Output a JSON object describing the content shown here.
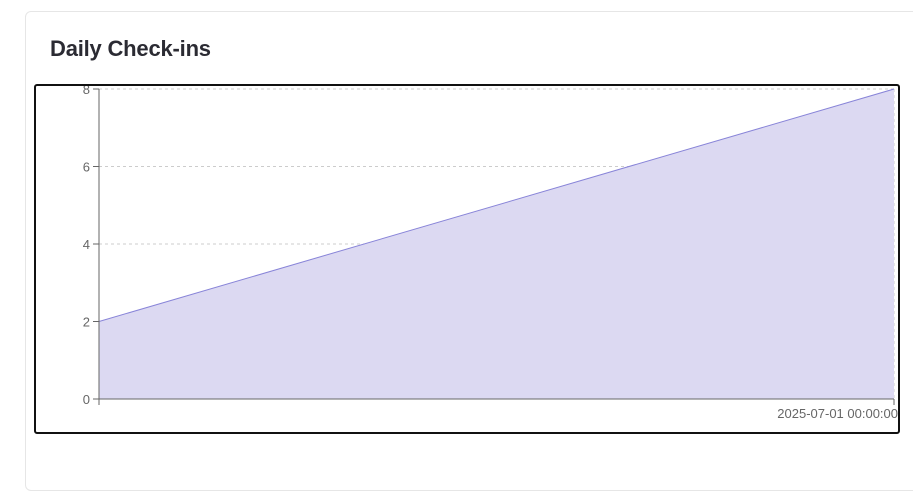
{
  "card": {
    "title": "Daily Check-ins"
  },
  "chart_data": {
    "type": "area",
    "title": "Daily Check-ins",
    "x": [
      "",
      "2025-07-01 00:00:00"
    ],
    "series": [
      {
        "values": [
          2,
          8
        ],
        "stroke": "#8884d8",
        "fill": "#dcd9f2"
      }
    ],
    "y_ticks": [
      0,
      2,
      4,
      6,
      8
    ],
    "y_tick_labels": [
      "0",
      "2",
      "4",
      "6",
      "8"
    ],
    "x_tick_labels": [
      "2025-07-01 00:00:00"
    ],
    "ylim": [
      0,
      8
    ],
    "grid": true,
    "legend": "none",
    "xlabel": "",
    "ylabel": ""
  }
}
